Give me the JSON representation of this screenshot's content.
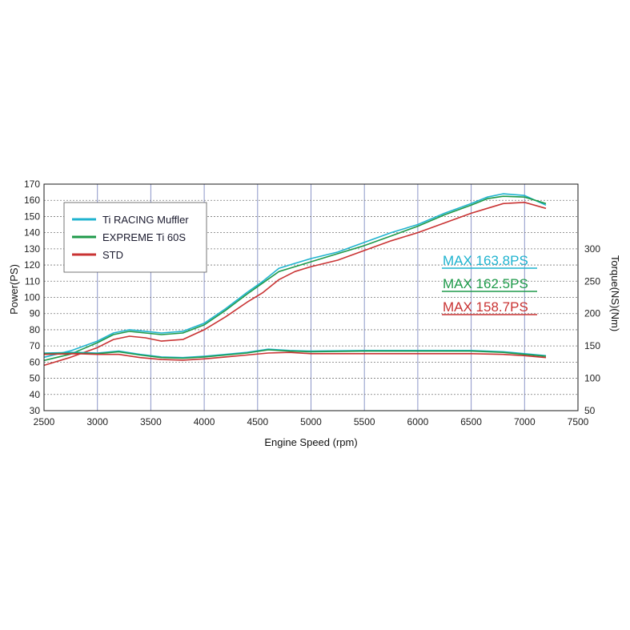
{
  "chart_data": {
    "type": "line",
    "xlabel": "Engine Speed (rpm)",
    "ylabel": "Power(PS)",
    "y2label": "Torque(NS)(Nm)",
    "xlim": [
      2500,
      7500
    ],
    "xticks": [
      2500,
      3000,
      3500,
      4000,
      4500,
      5000,
      5500,
      6000,
      6500,
      7000,
      7500
    ],
    "ylim": [
      30,
      170
    ],
    "yticks": [
      30,
      40,
      50,
      60,
      70,
      80,
      90,
      100,
      110,
      120,
      130,
      140,
      150,
      160,
      170
    ],
    "y2ticks": [
      50,
      100,
      150,
      200,
      250,
      300
    ],
    "grid": true,
    "legend_position": "top-left",
    "colors": {
      "ti_racing": "#1fb3cf",
      "expreme": "#1f9a4a",
      "std": "#c93333",
      "grid": "#8c96c8",
      "frame": "#1a1a1a"
    },
    "series": [
      {
        "name": "Ti RACING Muffler",
        "kind": "power",
        "color": "#1fb3cf",
        "x": [
          2500,
          2750,
          3000,
          3150,
          3300,
          3450,
          3600,
          3800,
          4000,
          4200,
          4400,
          4550,
          4700,
          4850,
          5000,
          5250,
          5500,
          5750,
          6000,
          6250,
          6500,
          6650,
          6800,
          7000,
          7200
        ],
        "y": [
          63,
          67,
          73,
          78,
          80,
          79,
          78,
          79,
          84,
          93,
          103,
          110,
          118,
          121,
          124,
          128,
          134,
          140,
          145,
          152,
          158,
          162,
          164,
          163,
          157
        ]
      },
      {
        "name": "EXPREME Ti 60S",
        "kind": "power",
        "color": "#1f9a4a",
        "x": [
          2500,
          2750,
          3000,
          3150,
          3300,
          3450,
          3600,
          3800,
          4000,
          4200,
          4400,
          4550,
          4700,
          4850,
          5000,
          5250,
          5500,
          5750,
          6000,
          6250,
          6500,
          6650,
          6800,
          7000,
          7200
        ],
        "y": [
          61,
          65,
          72,
          77,
          79,
          78,
          77,
          78,
          83,
          92,
          102,
          109,
          116,
          119,
          122,
          127,
          132,
          138,
          144,
          151,
          157,
          161,
          162.5,
          162,
          158
        ]
      },
      {
        "name": "STD",
        "kind": "power",
        "color": "#c93333",
        "x": [
          2500,
          2750,
          3000,
          3150,
          3300,
          3450,
          3600,
          3800,
          4000,
          4200,
          4400,
          4550,
          4700,
          4850,
          5000,
          5250,
          5500,
          5750,
          6000,
          6250,
          6500,
          6650,
          6800,
          7000,
          7200
        ],
        "y": [
          58,
          63,
          69,
          74,
          76,
          75,
          73,
          74,
          80,
          88,
          97,
          103,
          111,
          116,
          119,
          123,
          129,
          135,
          140,
          146,
          152,
          155,
          158,
          158.7,
          155
        ]
      },
      {
        "name": "Ti RACING Muffler",
        "kind": "torque",
        "color": "#1fb3cf",
        "x": [
          2500,
          2800,
          3000,
          3200,
          3400,
          3600,
          3800,
          4000,
          4200,
          4400,
          4600,
          4800,
          5000,
          5500,
          6000,
          6500,
          6800,
          7000,
          7200
        ],
        "y": [
          139,
          140,
          139,
          142,
          137,
          133,
          132,
          134,
          137,
          140,
          145,
          143,
          142,
          143,
          143,
          143,
          141,
          138,
          135
        ]
      },
      {
        "name": "EXPREME Ti 60S",
        "kind": "torque",
        "color": "#1f9a4a",
        "x": [
          2500,
          2800,
          3000,
          3200,
          3400,
          3600,
          3800,
          4000,
          4200,
          4400,
          4600,
          4800,
          5000,
          5500,
          6000,
          6500,
          6800,
          7000,
          7200
        ],
        "y": [
          138,
          139,
          138,
          141,
          136,
          132,
          131,
          133,
          136,
          139,
          144,
          142,
          141,
          142,
          142,
          142,
          140,
          137,
          134
        ]
      },
      {
        "name": "STD",
        "kind": "torque",
        "color": "#c93333",
        "x": [
          2500,
          2800,
          3000,
          3200,
          3400,
          3600,
          3800,
          4000,
          4200,
          4400,
          4600,
          4800,
          5000,
          5500,
          6000,
          6500,
          6800,
          7000,
          7200
        ],
        "y": [
          137,
          138,
          137,
          137,
          132,
          129,
          128,
          130,
          133,
          136,
          139,
          140,
          138,
          138,
          138,
          138,
          137,
          135,
          132
        ]
      }
    ],
    "annotations": [
      {
        "text": "MAX 163.8PS",
        "color": "#1fb3cf"
      },
      {
        "text": "MAX 162.5PS",
        "color": "#1f9a4a"
      },
      {
        "text": "MAX 158.7PS",
        "color": "#c93333"
      }
    ]
  }
}
